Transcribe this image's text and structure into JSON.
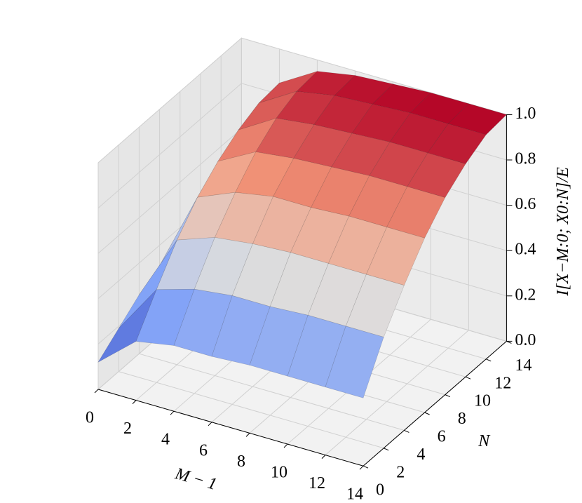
{
  "chart_data": {
    "type": "surface3d",
    "xlabel": "M − 1",
    "ylabel": "N",
    "zlabel": "I[X−M:0; X0:N]/E",
    "x": [
      0,
      2,
      4,
      6,
      8,
      10,
      12,
      14
    ],
    "y": [
      0,
      2,
      4,
      6,
      8,
      10,
      12,
      14
    ],
    "z": [
      [
        0.12,
        0.26,
        0.29,
        0.29,
        0.3,
        0.3,
        0.3,
        0.3
      ],
      [
        0.19,
        0.41,
        0.46,
        0.48,
        0.48,
        0.49,
        0.49,
        0.49
      ],
      [
        0.26,
        0.55,
        0.61,
        0.63,
        0.64,
        0.64,
        0.64,
        0.64
      ],
      [
        0.31,
        0.66,
        0.73,
        0.76,
        0.76,
        0.77,
        0.77,
        0.77
      ],
      [
        0.35,
        0.74,
        0.83,
        0.85,
        0.86,
        0.87,
        0.87,
        0.87
      ],
      [
        0.38,
        0.8,
        0.9,
        0.92,
        0.93,
        0.94,
        0.94,
        0.94
      ],
      [
        0.39,
        0.84,
        0.94,
        0.97,
        0.98,
        0.99,
        0.99,
        0.99
      ],
      [
        0.4,
        0.85,
        0.95,
        0.98,
        0.99,
        1.0,
        1.0,
        1.0
      ]
    ],
    "colormap": "coolwarm",
    "xlim": [
      0,
      14
    ],
    "ylim": [
      0,
      14
    ],
    "zlim": [
      0,
      1
    ],
    "xticks": [
      0,
      2,
      4,
      6,
      8,
      10,
      12,
      14
    ],
    "yticks": [
      0,
      2,
      4,
      6,
      8,
      10,
      12,
      14
    ],
    "zticks": [
      {
        "value": 0,
        "label": "0.0"
      },
      {
        "value": 0.2,
        "label": "0.2"
      },
      {
        "value": 0.4,
        "label": "0.4"
      },
      {
        "value": 0.6,
        "label": "0.6"
      },
      {
        "value": 0.8,
        "label": "0.8"
      },
      {
        "value": 1,
        "label": "1.0"
      }
    ],
    "grid": true
  }
}
